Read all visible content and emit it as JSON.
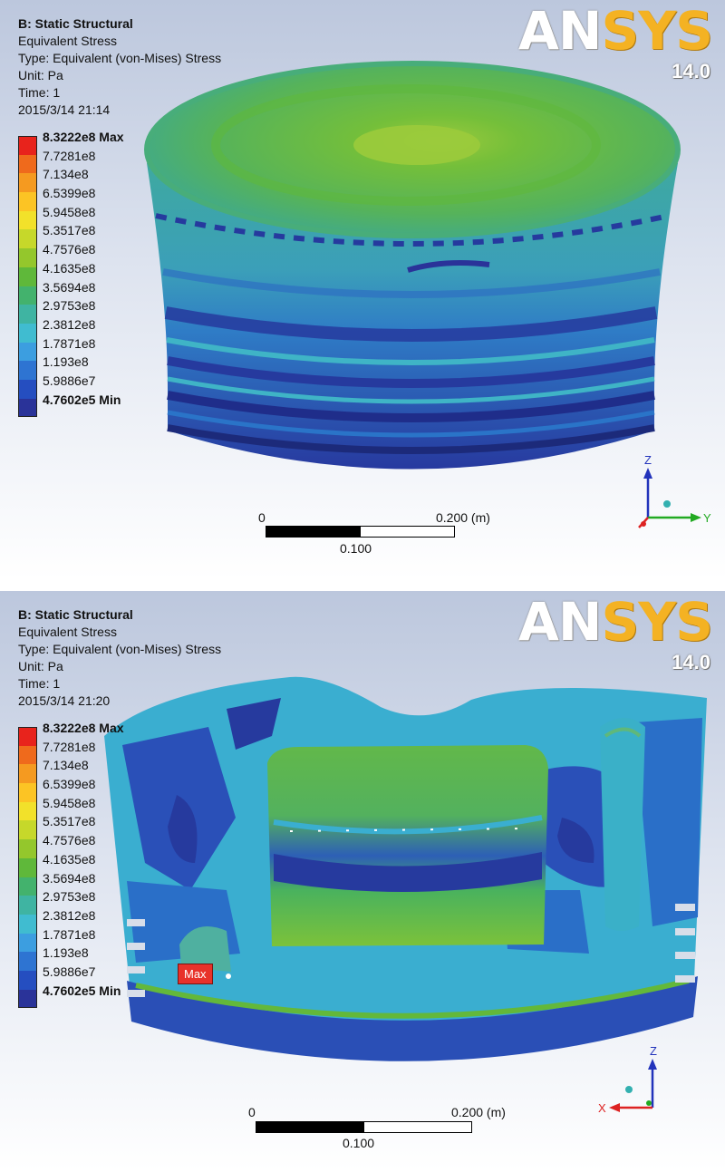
{
  "panels": [
    {
      "title": "B: Static Structural",
      "result_name": "Equivalent Stress",
      "type_line": "Type: Equivalent (von-Mises) Stress",
      "unit_line": "Unit: Pa",
      "time_line": "Time: 1",
      "timestamp": "2015/3/14 21:14",
      "view": "exterior",
      "scale": {
        "left_label": "0",
        "right_label": "0.200 (m)",
        "mid_label": "0.100"
      },
      "triad": {
        "z": "Z",
        "y": "Y"
      }
    },
    {
      "title": "B: Static Structural",
      "result_name": "Equivalent Stress",
      "type_line": "Type: Equivalent (von-Mises) Stress",
      "unit_line": "Unit: Pa",
      "time_line": "Time: 1",
      "timestamp": "2015/3/14 21:20",
      "view": "section",
      "max_tag": "Max",
      "scale": {
        "left_label": "0",
        "right_label": "0.200 (m)",
        "mid_label": "0.100"
      },
      "triad": {
        "z": "Z",
        "x": "X"
      }
    }
  ],
  "logo": {
    "part1": "AN",
    "part2": "SYS",
    "version": "14.0"
  },
  "legend": {
    "labels": [
      "8.3222e8 Max",
      "7.7281e8",
      "7.134e8",
      "6.5399e8",
      "5.9458e8",
      "5.3517e8",
      "4.7576e8",
      "4.1635e8",
      "3.5694e8",
      "2.9753e8",
      "2.3812e8",
      "1.7871e8",
      "1.193e8",
      "5.9886e7",
      "4.7602e5 Min"
    ],
    "colors": [
      "#e8231c",
      "#ef6a1c",
      "#f59a20",
      "#fcc424",
      "#f2e12a",
      "#c6d82a",
      "#94c72c",
      "#5fb83a",
      "#43b26d",
      "#3fb4a2",
      "#40bcd0",
      "#3c9ee0",
      "#2e74d2",
      "#254ec0",
      "#2a3399"
    ]
  },
  "colors": {
    "green": "#63b83a",
    "green_light": "#8cc63c",
    "cyan": "#3ab0c8",
    "blue": "#2a6fc8",
    "navy": "#263a9e",
    "dark": "#1c2a7a"
  }
}
